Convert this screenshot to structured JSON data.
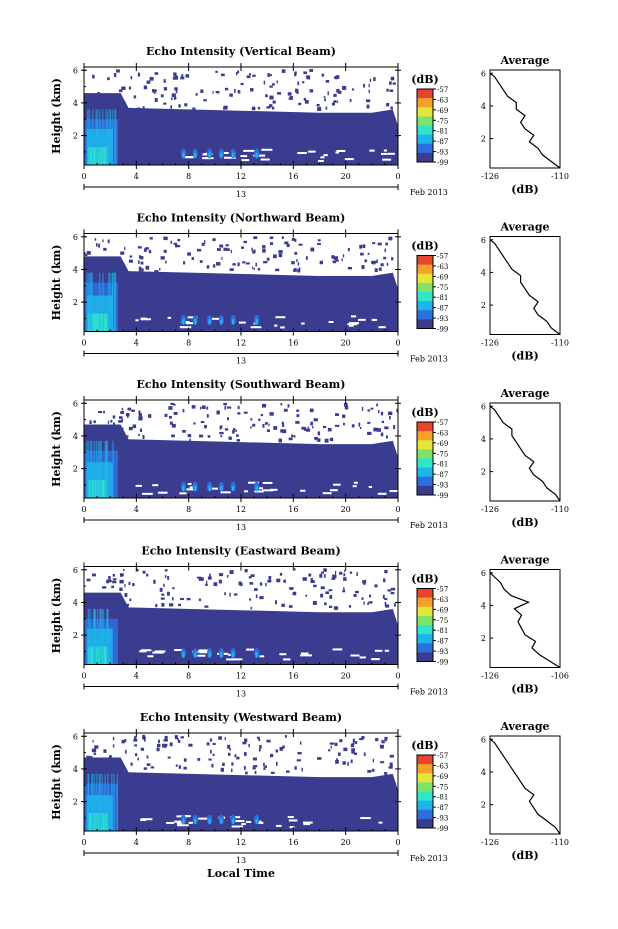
{
  "figure": {
    "shared_xlabel": "Local Time",
    "date_label": "Feb 2013",
    "day_label": "13",
    "colorbar_unit": "(dB)",
    "colorbar_ticks": [
      "-57",
      "-63",
      "-69",
      "-75",
      "-81",
      "-87",
      "-93",
      "-99"
    ],
    "avg_xlabel": "(dB)",
    "avg_title": "Average"
  },
  "colors": {
    "colormap": [
      "#3a3d8f",
      "#2e6fe0",
      "#1fb5ea",
      "#2fe6c9",
      "#7fe36a",
      "#e6e63a",
      "#f4a02a",
      "#e8452e"
    ],
    "background_echo": "#3a3d8f"
  },
  "chart_data": [
    {
      "type": "heatmap",
      "title": "Echo Intensity (Vertical Beam)",
      "xlabel": "",
      "ylabel": "Height (km)",
      "xlim": [
        0,
        24
      ],
      "ylim": [
        0.2,
        6.2
      ],
      "x_ticks": [
        "0",
        "4",
        "8",
        "12",
        "16",
        "20",
        "0"
      ],
      "y_ticks": [
        "2",
        "4",
        "6"
      ],
      "colorbar": {
        "label": "(dB)",
        "range": [
          -99,
          -57
        ]
      },
      "echo_layer_top_km": 3.4,
      "average_profile": {
        "title": "Average",
        "xlabel": "(dB)",
        "xlim": [
          -126,
          -110
        ],
        "x_ticks": [
          "-126",
          "-110"
        ],
        "ylim": [
          0.2,
          6.2
        ],
        "y_ticks": [
          "2",
          "4",
          "6"
        ],
        "heights_km": [
          0.2,
          0.6,
          1.0,
          1.4,
          1.8,
          2.2,
          2.6,
          3.0,
          3.4,
          3.8,
          4.2,
          4.6,
          5.0,
          5.4,
          5.8,
          6.0
        ],
        "db": [
          -110,
          -112,
          -114,
          -115,
          -117,
          -116,
          -118,
          -119,
          -118,
          -120,
          -120,
          -122,
          -123,
          -124,
          -125,
          -126
        ]
      }
    },
    {
      "type": "heatmap",
      "title": "Echo Intensity (Northward Beam)",
      "xlabel": "",
      "ylabel": "Height (km)",
      "xlim": [
        0,
        24
      ],
      "ylim": [
        0.2,
        6.2
      ],
      "x_ticks": [
        "0",
        "4",
        "8",
        "12",
        "16",
        "20",
        "0"
      ],
      "y_ticks": [
        "2",
        "4",
        "6"
      ],
      "colorbar": {
        "label": "(dB)",
        "range": [
          -99,
          -57
        ]
      },
      "echo_layer_top_km": 3.6,
      "average_profile": {
        "title": "Average",
        "xlabel": "(dB)",
        "xlim": [
          -126,
          -110
        ],
        "x_ticks": [
          "-126",
          "-110"
        ],
        "ylim": [
          0.2,
          6.2
        ],
        "y_ticks": [
          "2",
          "4",
          "6"
        ],
        "heights_km": [
          0.2,
          0.6,
          1.0,
          1.4,
          1.8,
          2.2,
          2.6,
          3.0,
          3.4,
          3.8,
          4.2,
          4.6,
          5.0,
          5.4,
          5.8,
          6.0
        ],
        "db": [
          -110,
          -112,
          -113,
          -115,
          -116,
          -115,
          -117,
          -118,
          -119,
          -119,
          -121,
          -122,
          -123,
          -124,
          -125,
          -126
        ]
      }
    },
    {
      "type": "heatmap",
      "title": "Echo Intensity (Southward Beam)",
      "xlabel": "",
      "ylabel": "Height (km)",
      "xlim": [
        0,
        24
      ],
      "ylim": [
        0.2,
        6.2
      ],
      "x_ticks": [
        "0",
        "4",
        "8",
        "12",
        "16",
        "20",
        "0"
      ],
      "y_ticks": [
        "2",
        "4",
        "6"
      ],
      "colorbar": {
        "label": "(dB)",
        "range": [
          -99,
          -57
        ]
      },
      "echo_layer_top_km": 3.5,
      "average_profile": {
        "title": "Average",
        "xlabel": "(dB)",
        "xlim": [
          -126,
          -110
        ],
        "x_ticks": [
          "-126",
          "-110"
        ],
        "ylim": [
          0.2,
          6.2
        ],
        "y_ticks": [
          "2",
          "4",
          "6"
        ],
        "heights_km": [
          0.2,
          0.6,
          1.0,
          1.4,
          1.8,
          2.2,
          2.6,
          3.0,
          3.4,
          3.8,
          4.2,
          4.6,
          5.0,
          5.4,
          5.8,
          6.0
        ],
        "db": [
          -110,
          -111,
          -113,
          -114,
          -116,
          -117,
          -116,
          -118,
          -119,
          -120,
          -121,
          -121,
          -123,
          -124,
          -125,
          -126
        ]
      }
    },
    {
      "type": "heatmap",
      "title": "Echo Intensity (Eastward Beam)",
      "xlabel": "",
      "ylabel": "Height (km)",
      "xlim": [
        0,
        24
      ],
      "ylim": [
        0.2,
        6.2
      ],
      "x_ticks": [
        "0",
        "4",
        "8",
        "12",
        "16",
        "20",
        "0"
      ],
      "y_ticks": [
        "2",
        "4",
        "6"
      ],
      "colorbar": {
        "label": "(dB)",
        "range": [
          -99,
          -57
        ]
      },
      "echo_layer_top_km": 3.4,
      "average_profile": {
        "title": "Average",
        "xlabel": "(dB)",
        "xlim": [
          -126,
          -106
        ],
        "x_ticks": [
          "-126",
          "-106"
        ],
        "ylim": [
          0.2,
          6.2
        ],
        "y_ticks": [
          "2",
          "4",
          "6"
        ],
        "heights_km": [
          0.2,
          0.6,
          1.0,
          1.4,
          1.8,
          2.2,
          2.6,
          3.0,
          3.4,
          3.8,
          4.2,
          4.6,
          5.0,
          5.4,
          5.8,
          6.0
        ],
        "db": [
          -106,
          -109,
          -112,
          -114,
          -113,
          -116,
          -117,
          -118,
          -117,
          -119,
          -115,
          -120,
          -122,
          -123,
          -125,
          -126
        ]
      }
    },
    {
      "type": "heatmap",
      "title": "Echo Intensity (Westward Beam)",
      "xlabel": "Local Time",
      "ylabel": "Height (km)",
      "xlim": [
        0,
        24
      ],
      "ylim": [
        0.2,
        6.2
      ],
      "x_ticks": [
        "0",
        "4",
        "8",
        "12",
        "16",
        "20",
        "0"
      ],
      "y_ticks": [
        "2",
        "4",
        "6"
      ],
      "colorbar": {
        "label": "(dB)",
        "range": [
          -99,
          -57
        ]
      },
      "echo_layer_top_km": 3.5,
      "average_profile": {
        "title": "Average",
        "xlabel": "(dB)",
        "xlim": [
          -126,
          -110
        ],
        "x_ticks": [
          "-126",
          "-110"
        ],
        "ylim": [
          0.2,
          6.2
        ],
        "y_ticks": [
          "2",
          "4",
          "6"
        ],
        "heights_km": [
          0.2,
          0.6,
          1.0,
          1.4,
          1.8,
          2.2,
          2.6,
          3.0,
          3.4,
          3.8,
          4.2,
          4.6,
          5.0,
          5.4,
          5.8,
          6.0
        ],
        "db": [
          -110,
          -111,
          -113,
          -115,
          -116,
          -117,
          -116,
          -118,
          -119,
          -120,
          -121,
          -122,
          -123,
          -124,
          -125,
          -126
        ]
      }
    }
  ]
}
